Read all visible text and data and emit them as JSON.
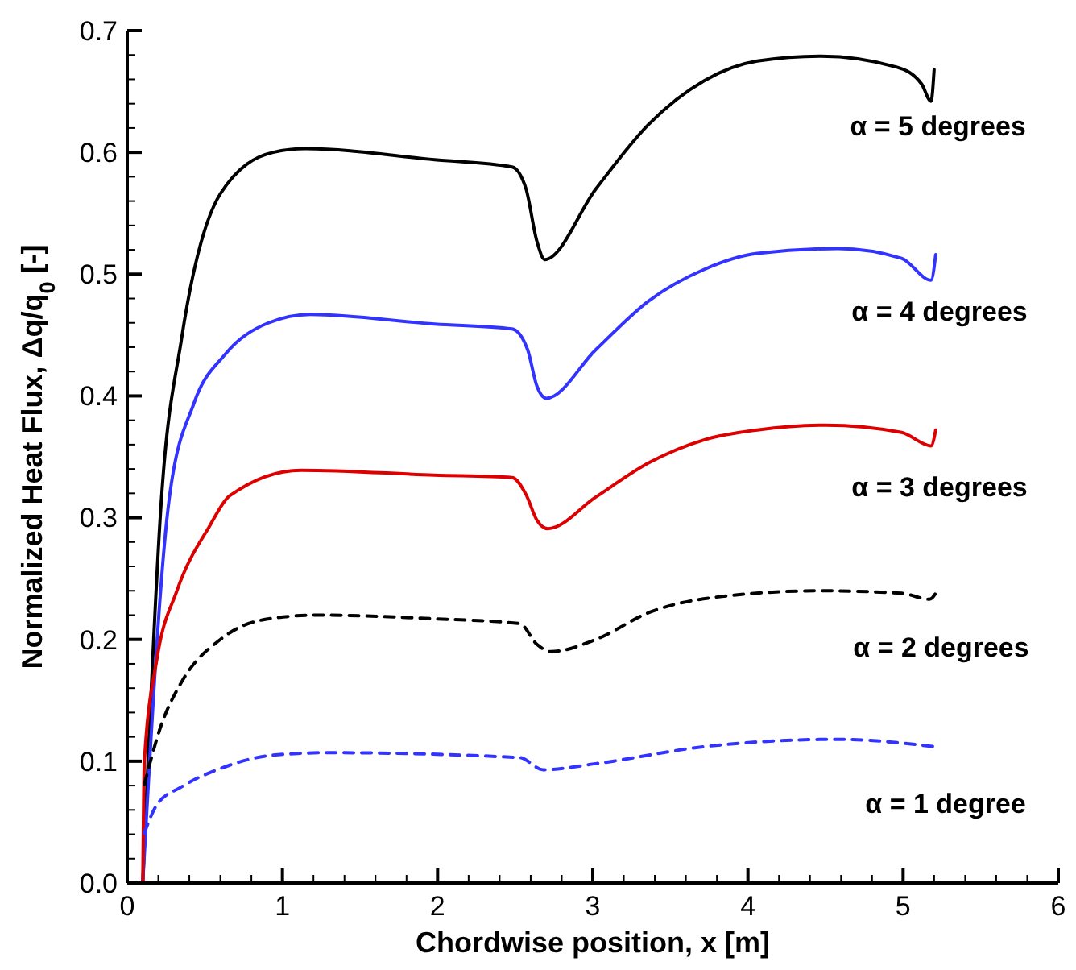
{
  "chart_data": {
    "type": "line",
    "xlabel": "Chordwise position, x [m]",
    "ylabel": "Normalized Heat Flux, Δq/q$_{0}$ [-]",
    "xlim": [
      0,
      6
    ],
    "ylim": [
      0,
      0.7
    ],
    "xticks": [
      0,
      {
        "value": 0.2,
        "label": null
      },
      {
        "value": 0.4,
        "label": null
      },
      {
        "value": 0.6,
        "label": null
      },
      {
        "value": 0.8,
        "label": null
      },
      1,
      {
        "value": 1.2,
        "label": null
      },
      {
        "value": 1.4,
        "label": null
      },
      {
        "value": 1.6,
        "label": null
      },
      {
        "value": 1.8,
        "label": null
      },
      2,
      {
        "value": 2.2,
        "label": null
      },
      {
        "value": 2.4,
        "label": null
      },
      {
        "value": 2.6,
        "label": null
      },
      {
        "value": 2.8,
        "label": null
      },
      3,
      {
        "value": 3.2,
        "label": null
      },
      {
        "value": 3.4,
        "label": null
      },
      {
        "value": 3.6,
        "label": null
      },
      {
        "value": 3.8,
        "label": null
      },
      4,
      {
        "value": 4.2,
        "label": null
      },
      {
        "value": 4.4,
        "label": null
      },
      {
        "value": 4.6,
        "label": null
      },
      {
        "value": 4.8,
        "label": null
      },
      5,
      {
        "value": 5.2,
        "label": null
      },
      {
        "value": 5.4,
        "label": null
      },
      {
        "value": 5.6,
        "label": null
      },
      {
        "value": 5.8,
        "label": null
      },
      6
    ],
    "yticks": [
      {
        "value": 0,
        "label": "0.0"
      },
      {
        "value": 0.02,
        "label": null
      },
      {
        "value": 0.04,
        "label": null
      },
      {
        "value": 0.06,
        "label": null
      },
      {
        "value": 0.08,
        "label": null
      },
      0.1,
      {
        "value": 0.12,
        "label": null
      },
      {
        "value": 0.14,
        "label": null
      },
      {
        "value": 0.16,
        "label": null
      },
      {
        "value": 0.18,
        "label": null
      },
      0.2,
      {
        "value": 0.22,
        "label": null
      },
      {
        "value": 0.24,
        "label": null
      },
      {
        "value": 0.26,
        "label": null
      },
      {
        "value": 0.28,
        "label": null
      },
      0.3,
      {
        "value": 0.32,
        "label": null
      },
      {
        "value": 0.34,
        "label": null
      },
      {
        "value": 0.36,
        "label": null
      },
      {
        "value": 0.38,
        "label": null
      },
      0.4,
      {
        "value": 0.42,
        "label": null
      },
      {
        "value": 0.44,
        "label": null
      },
      {
        "value": 0.46,
        "label": null
      },
      {
        "value": 0.48,
        "label": null
      },
      0.5,
      {
        "value": 0.52,
        "label": null
      },
      {
        "value": 0.54,
        "label": null
      },
      {
        "value": 0.56,
        "label": null
      },
      {
        "value": 0.58,
        "label": null
      },
      0.6,
      {
        "value": 0.62,
        "label": null
      },
      {
        "value": 0.64,
        "label": null
      },
      {
        "value": 0.66,
        "label": null
      },
      {
        "value": 0.68,
        "label": null
      },
      0.7
    ],
    "grid": false,
    "marker": "none",
    "series": [
      {
        "name": "α = 5 degrees",
        "color": "#000000",
        "line_style": "solid",
        "x": [
          0.1,
          0.22,
          0.35,
          0.6,
          0.94,
          1.15,
          1.98,
          2.48,
          2.57,
          2.64,
          2.69,
          3.02,
          3.36,
          3.72,
          4.06,
          4.47,
          4.96,
          5.12,
          5.18,
          5.2
        ],
        "values": [
          0,
          0.315,
          0.447,
          0.566,
          0.6,
          0.603,
          0.594,
          0.588,
          0.57,
          0.527,
          0.512,
          0.57,
          0.623,
          0.659,
          0.675,
          0.679,
          0.67,
          0.656,
          0.642,
          0.668
        ]
      },
      {
        "name": "α = 4 degrees",
        "color": "#3333ff",
        "line_style": "solid",
        "x": [
          0.1,
          0.27,
          0.43,
          0.63,
          0.91,
          1.18,
          1.98,
          2.48,
          2.58,
          2.64,
          2.7,
          3.02,
          3.36,
          3.72,
          4.06,
          4.58,
          4.99,
          5.18,
          5.21
        ],
        "values": [
          0,
          0.315,
          0.394,
          0.434,
          0.46,
          0.467,
          0.459,
          0.455,
          0.438,
          0.408,
          0.398,
          0.438,
          0.478,
          0.504,
          0.517,
          0.521,
          0.513,
          0.495,
          0.516
        ]
      },
      {
        "name": "α = 3 degrees",
        "color": "#dd0000",
        "line_style": "solid",
        "x": [
          0.1,
          0.11,
          0.19,
          0.32,
          0.53,
          0.66,
          1.12,
          1.98,
          2.48,
          2.57,
          2.64,
          2.71,
          3.02,
          3.36,
          3.72,
          4.06,
          4.5,
          4.99,
          5.18,
          5.21
        ],
        "values": [
          0,
          0.099,
          0.183,
          0.24,
          0.293,
          0.318,
          0.339,
          0.335,
          0.333,
          0.319,
          0.298,
          0.291,
          0.317,
          0.345,
          0.364,
          0.372,
          0.376,
          0.37,
          0.359,
          0.372
        ]
      },
      {
        "name": "α = 2 degrees",
        "color": "#000000",
        "line_style": "dashed",
        "x": [
          0.11,
          0.22,
          0.35,
          0.6,
          0.87,
          1.22,
          1.98,
          2.53,
          2.64,
          2.73,
          3.02,
          3.36,
          3.88,
          4.47,
          4.99,
          5.17,
          5.22
        ],
        "values": [
          0.081,
          0.13,
          0.165,
          0.2,
          0.216,
          0.22,
          0.217,
          0.213,
          0.196,
          0.19,
          0.2,
          0.222,
          0.236,
          0.24,
          0.238,
          0.233,
          0.24
        ]
      },
      {
        "name": "α = 1 degree",
        "color": "#3333ff",
        "line_style": "dashed",
        "x": [
          0.11,
          0.19,
          0.35,
          0.6,
          0.94,
          1.29,
          2.53,
          2.68,
          3.02,
          3.72,
          4.58,
          5.2
        ],
        "values": [
          0.041,
          0.064,
          0.079,
          0.094,
          0.105,
          0.107,
          0.103,
          0.093,
          0.098,
          0.112,
          0.118,
          0.112
        ]
      }
    ]
  }
}
